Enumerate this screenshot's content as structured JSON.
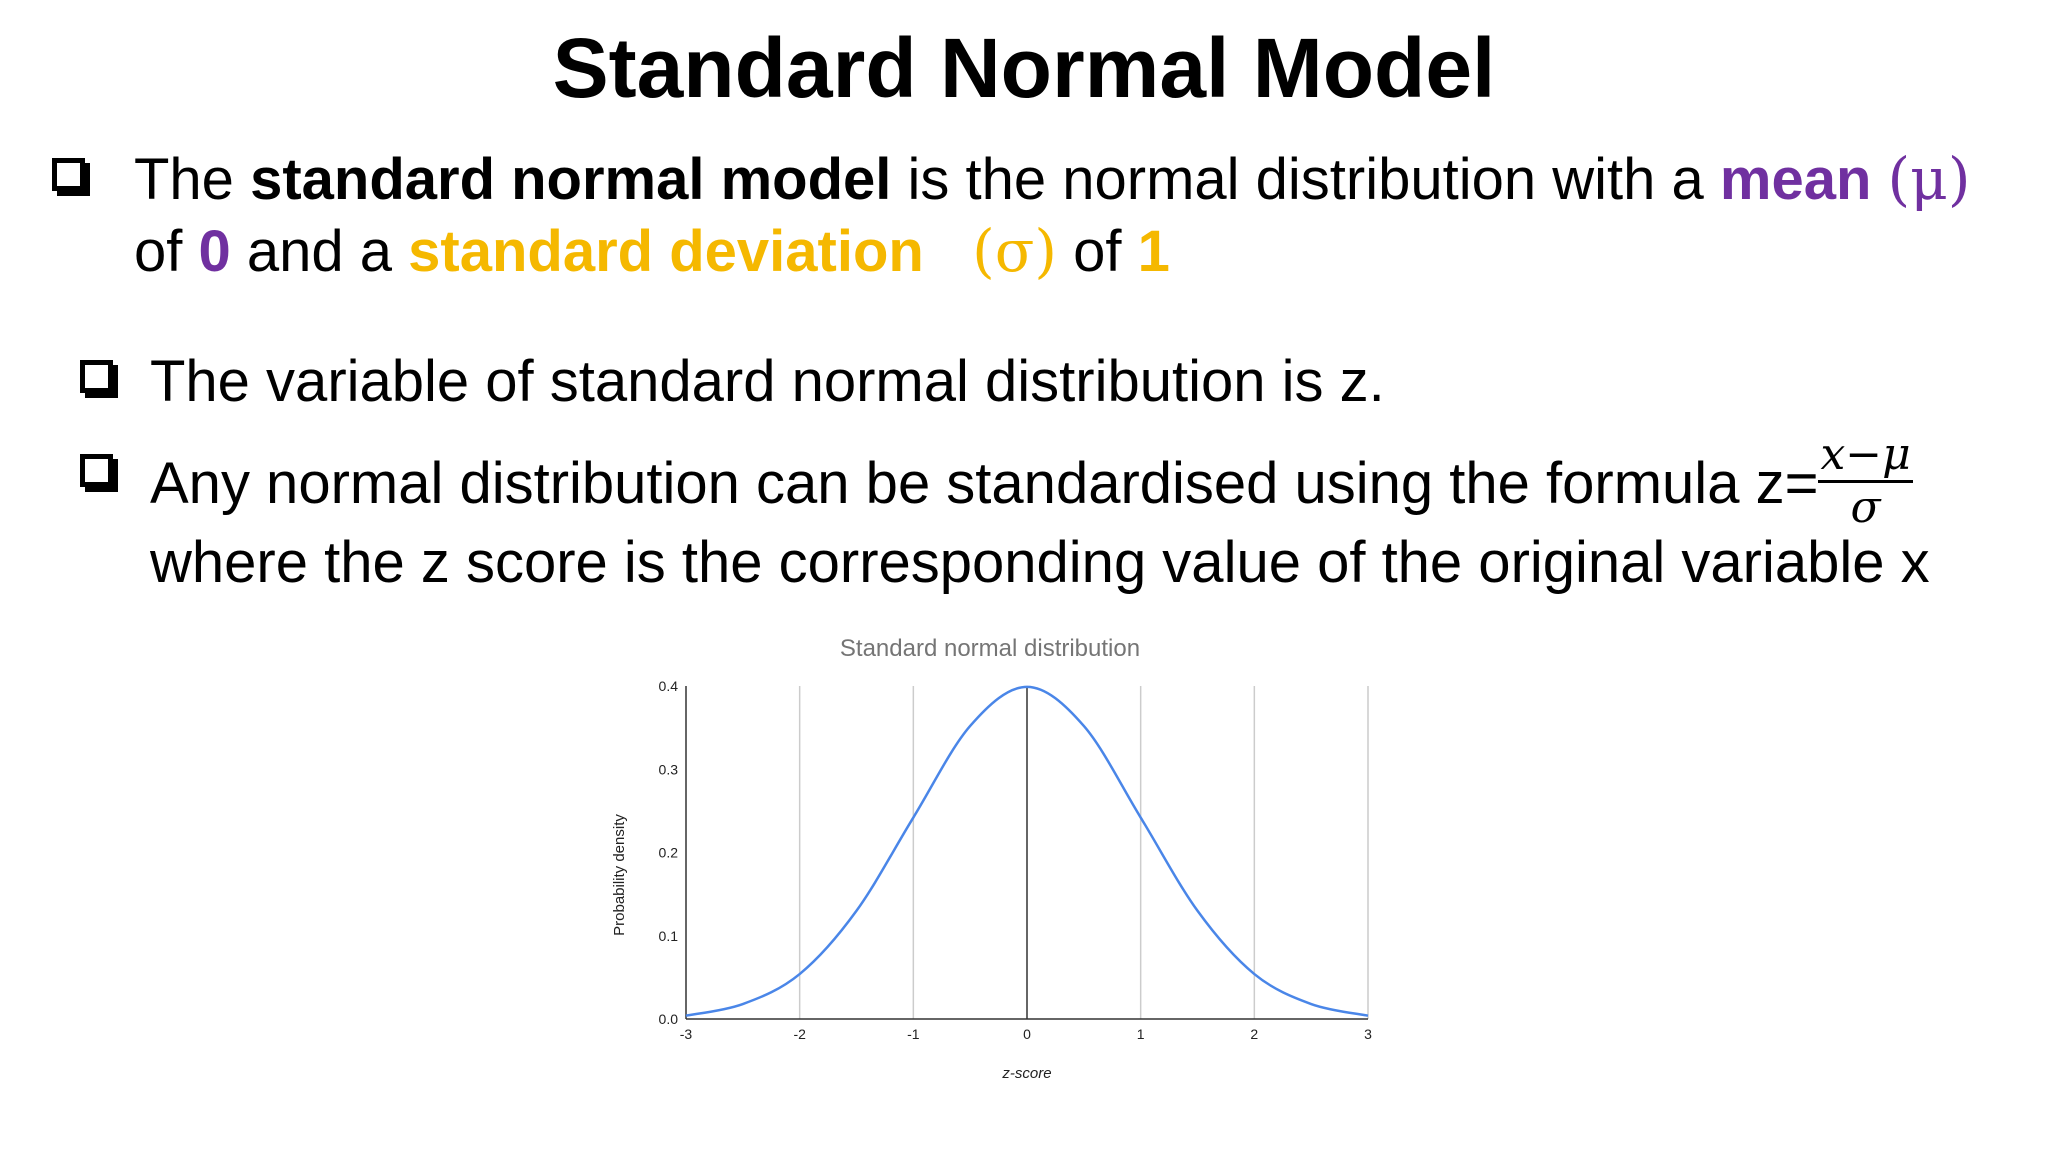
{
  "title": "Standard Normal Model",
  "bullet1": {
    "t1": "The ",
    "t2": "standard normal model",
    "t3": " is the normal distribution with a ",
    "t4": "mean",
    "t5": "(μ)",
    "t6": "of ",
    "t7": "0",
    "t8": " and a ",
    "t9": "standard deviation",
    "t10": "(σ)",
    "t11": " of ",
    "t12": "1"
  },
  "bullet2": {
    "text": "The variable of standard normal distribution is z."
  },
  "bullet3": {
    "line1": "Any normal distribution can be standardised using the formula z=",
    "numerator": "x−μ",
    "denominator": "σ",
    "line2": "where the z score is the corresponding value of the original variable x"
  },
  "colors": {
    "purple": "#7030a0",
    "gold": "#f5b800",
    "curve": "#4a86e8",
    "grid": "#cccccc"
  },
  "chart_data": {
    "type": "line",
    "title": "Standard normal distribution",
    "xlabel": "z-score",
    "ylabel": "Probability density",
    "xlim": [
      -3,
      3
    ],
    "ylim": [
      0,
      0.4
    ],
    "x_ticks": [
      "-3",
      "-2",
      "-1",
      "0",
      "1",
      "2",
      "3"
    ],
    "y_ticks": [
      "0.0",
      "0.1",
      "0.2",
      "0.3",
      "0.4"
    ],
    "grid": "vertical",
    "series": [
      {
        "x": [
          -3,
          -2.5,
          -2,
          -1.5,
          -1,
          -0.5,
          0,
          0.5,
          1,
          1.5,
          2,
          2.5,
          3
        ],
        "values": [
          0.004,
          0.018,
          0.054,
          0.13,
          0.242,
          0.352,
          0.399,
          0.352,
          0.242,
          0.13,
          0.054,
          0.018,
          0.004
        ]
      }
    ]
  }
}
